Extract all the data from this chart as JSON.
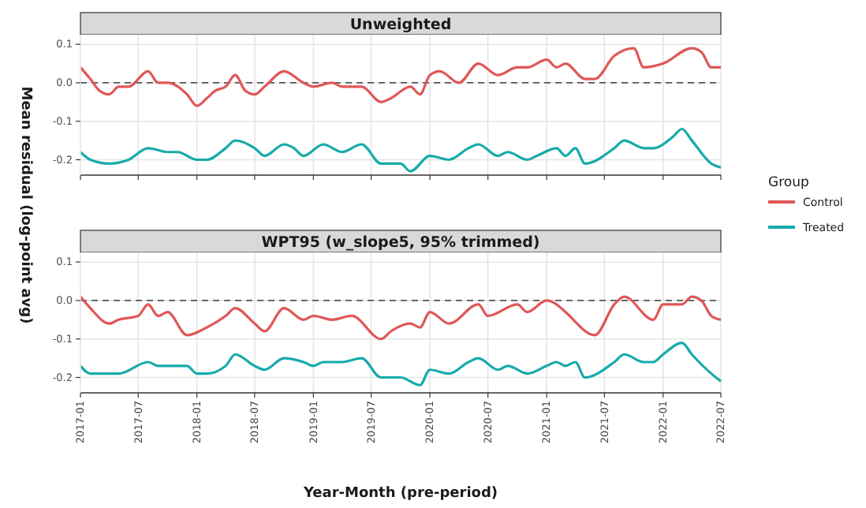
{
  "chart_data": [
    {
      "type": "line",
      "title": "Unweighted",
      "ylabel": "Mean residual (log-point avg)",
      "legend_title": "Group",
      "legend": "right",
      "grid": true,
      "tick_labels": "y",
      "xlim": [
        "2017-01",
        "2022-07"
      ],
      "xticks": [
        "2017-01",
        "2017-07",
        "2018-01",
        "2018-07",
        "2019-01",
        "2019-07",
        "2020-01",
        "2020-07",
        "2021-01",
        "2021-07",
        "2022-01",
        "2022-07"
      ],
      "ylim": [
        -0.24,
        0.125
      ],
      "yticks": [
        -0.2,
        -0.1,
        {
          "value": 0,
          "label": "0.0"
        },
        0.1
      ],
      "ref_lines": [
        {
          "axis": "y",
          "value": 0,
          "line_style": "dashed",
          "color": "#555555"
        }
      ],
      "series": [
        {
          "name": "Control",
          "color": "#e05757",
          "x": [
            "2017-01",
            "2017-02",
            "2017-03",
            "2017-04",
            "2017-05",
            "2017-06",
            "2017-08",
            "2017-09",
            "2017-10",
            "2017-12",
            "2018-01",
            "2018-02",
            "2018-03",
            "2018-04",
            "2018-05",
            "2018-06",
            "2018-07",
            "2018-08",
            "2018-10",
            "2018-12",
            "2019-01",
            "2019-03",
            "2019-04",
            "2019-06",
            "2019-08",
            "2019-09",
            "2019-11",
            "2019-12",
            "2020-01",
            "2020-02",
            "2020-04",
            "2020-06",
            "2020-08",
            "2020-10",
            "2020-11",
            "2021-01",
            "2021-02",
            "2021-03",
            "2021-05",
            "2021-06",
            "2021-08",
            "2021-10",
            "2021-11",
            "2022-01",
            "2022-04",
            "2022-05",
            "2022-06",
            "2022-07"
          ],
          "values": [
            0.04,
            0.01,
            -0.02,
            -0.03,
            -0.01,
            -0.01,
            0.03,
            0,
            0,
            -0.03,
            -0.06,
            -0.04,
            -0.02,
            -0.01,
            0.02,
            -0.02,
            -0.03,
            -0.01,
            0.03,
            0,
            -0.01,
            0,
            -0.01,
            -0.01,
            -0.05,
            -0.04,
            -0.01,
            -0.03,
            0.02,
            0.03,
            0,
            0.05,
            0.02,
            0.04,
            0.04,
            0.06,
            0.04,
            0.05,
            0.01,
            0.01,
            0.07,
            0.09,
            0.04,
            0.05,
            0.09,
            0.08,
            0.04,
            0.04
          ]
        },
        {
          "name": "Treated",
          "color": "#17aaab",
          "x": [
            "2017-01",
            "2017-02",
            "2017-04",
            "2017-06",
            "2017-08",
            "2017-10",
            "2017-11",
            "2018-01",
            "2018-02",
            "2018-04",
            "2018-05",
            "2018-07",
            "2018-08",
            "2018-10",
            "2018-11",
            "2018-12",
            "2019-02",
            "2019-04",
            "2019-06",
            "2019-08",
            "2019-10",
            "2019-11",
            "2020-01",
            "2020-03",
            "2020-05",
            "2020-06",
            "2020-08",
            "2020-09",
            "2020-11",
            "2020-12",
            "2021-02",
            "2021-03",
            "2021-04",
            "2021-05",
            "2021-08",
            "2021-09",
            "2021-11",
            "2021-12",
            "2022-02",
            "2022-03",
            "2022-04",
            "2022-06",
            "2022-07"
          ],
          "values": [
            -0.18,
            -0.2,
            -0.21,
            -0.2,
            -0.17,
            -0.18,
            -0.18,
            -0.2,
            -0.2,
            -0.17,
            -0.15,
            -0.17,
            -0.19,
            -0.16,
            -0.17,
            -0.19,
            -0.16,
            -0.18,
            -0.16,
            -0.21,
            -0.21,
            -0.23,
            -0.19,
            -0.2,
            -0.17,
            -0.16,
            -0.19,
            -0.18,
            -0.2,
            -0.19,
            -0.17,
            -0.19,
            -0.17,
            -0.21,
            -0.17,
            -0.15,
            -0.17,
            -0.17,
            -0.14,
            -0.12,
            -0.15,
            -0.21,
            -0.22
          ]
        }
      ]
    },
    {
      "type": "line",
      "title": "WPT95 (w_slope5, 95% trimmed)",
      "xlabel": "Year-Month (pre-period)",
      "grid": true,
      "xlim": [
        "2017-01",
        "2022-07"
      ],
      "xticks": [
        "2017-01",
        "2017-07",
        "2018-01",
        "2018-07",
        "2019-01",
        "2019-07",
        "2020-01",
        "2020-07",
        "2021-01",
        "2021-07",
        "2022-01",
        "2022-07"
      ],
      "ylim": [
        -0.24,
        0.125
      ],
      "yticks": [
        -0.2,
        -0.1,
        {
          "value": 0,
          "label": "0.0"
        },
        0.1
      ],
      "ref_lines": [
        {
          "axis": "y",
          "value": 0,
          "line_style": "dashed",
          "color": "#555555"
        }
      ],
      "series": [
        {
          "name": "Control",
          "color": "#e05757",
          "x": [
            "2017-01",
            "2017-02",
            "2017-04",
            "2017-05",
            "2017-07",
            "2017-08",
            "2017-09",
            "2017-10",
            "2017-12",
            "2018-02",
            "2018-04",
            "2018-05",
            "2018-07",
            "2018-08",
            "2018-10",
            "2018-12",
            "2019-01",
            "2019-03",
            "2019-05",
            "2019-08",
            "2019-09",
            "2019-11",
            "2019-12",
            "2020-01",
            "2020-03",
            "2020-06",
            "2020-07",
            "2020-10",
            "2020-11",
            "2021-01",
            "2021-02",
            "2021-03",
            "2021-06",
            "2021-08",
            "2021-09",
            "2021-12",
            "2022-01",
            "2022-03",
            "2022-04",
            "2022-05",
            "2022-06",
            "2022-07"
          ],
          "values": [
            0.01,
            -0.02,
            -0.06,
            -0.05,
            -0.04,
            -0.01,
            -0.04,
            -0.03,
            -0.09,
            -0.07,
            -0.04,
            -0.02,
            -0.06,
            -0.08,
            -0.02,
            -0.05,
            -0.04,
            -0.05,
            -0.04,
            -0.1,
            -0.08,
            -0.06,
            -0.07,
            -0.03,
            -0.06,
            -0.01,
            -0.04,
            -0.01,
            -0.03,
            0,
            -0.01,
            -0.03,
            -0.09,
            -0.01,
            0.01,
            -0.05,
            -0.01,
            -0.01,
            0.01,
            0,
            -0.04,
            -0.05
          ]
        },
        {
          "name": "Treated",
          "color": "#17aaab",
          "x": [
            "2017-01",
            "2017-02",
            "2017-05",
            "2017-08",
            "2017-09",
            "2017-12",
            "2018-01",
            "2018-02",
            "2018-04",
            "2018-05",
            "2018-07",
            "2018-08",
            "2018-10",
            "2018-12",
            "2019-01",
            "2019-02",
            "2019-04",
            "2019-06",
            "2019-08",
            "2019-10",
            "2019-12",
            "2020-01",
            "2020-03",
            "2020-05",
            "2020-06",
            "2020-08",
            "2020-09",
            "2020-11",
            "2021-01",
            "2021-02",
            "2021-03",
            "2021-04",
            "2021-05",
            "2021-08",
            "2021-09",
            "2021-11",
            "2021-12",
            "2022-01",
            "2022-03",
            "2022-04",
            "2022-06",
            "2022-07"
          ],
          "values": [
            -0.17,
            -0.19,
            -0.19,
            -0.16,
            -0.17,
            -0.17,
            -0.19,
            -0.19,
            -0.17,
            -0.14,
            -0.17,
            -0.18,
            -0.15,
            -0.16,
            -0.17,
            -0.16,
            -0.16,
            -0.15,
            -0.2,
            -0.2,
            -0.22,
            -0.18,
            -0.19,
            -0.16,
            -0.15,
            -0.18,
            -0.17,
            -0.19,
            -0.17,
            -0.16,
            -0.17,
            -0.16,
            -0.2,
            -0.16,
            -0.14,
            -0.16,
            -0.16,
            -0.14,
            -0.11,
            -0.14,
            -0.19,
            -0.21
          ]
        }
      ]
    }
  ]
}
